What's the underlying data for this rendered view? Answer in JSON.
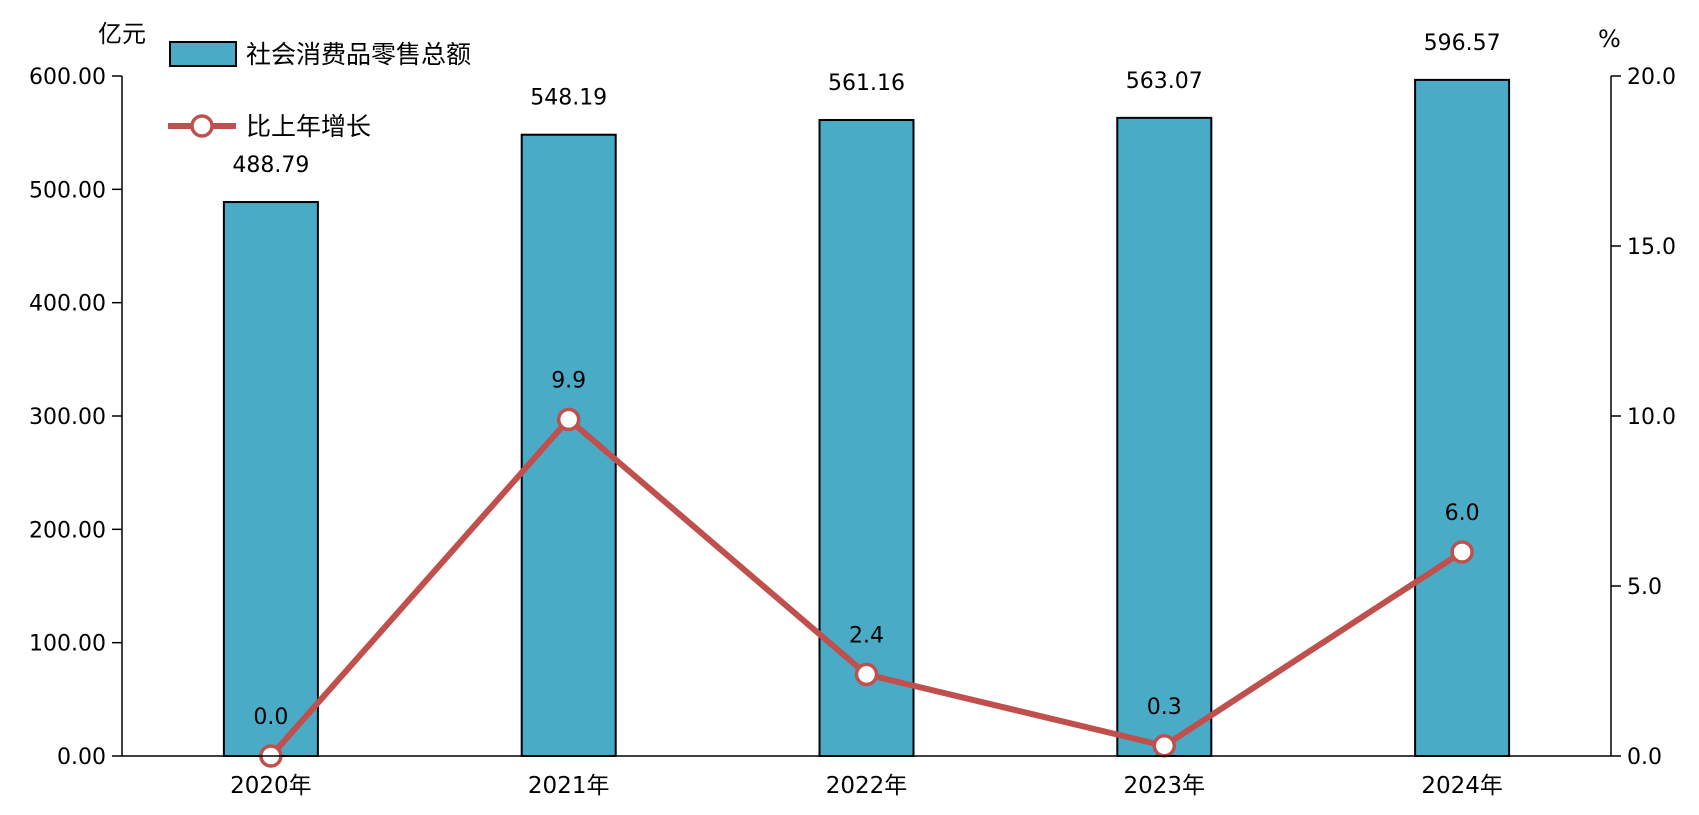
{
  "chart_data": {
    "type": "bar",
    "categories": [
      "2020年",
      "2021年",
      "2022年",
      "2023年",
      "2024年"
    ],
    "series": [
      {
        "name": "社会消费品零售总额",
        "type": "bar",
        "axis": "left",
        "values": [
          488.79,
          548.19,
          561.16,
          563.07,
          596.57
        ],
        "labels": [
          "488.79",
          "548.19",
          "561.16",
          "563.07",
          "596.57"
        ],
        "color": "#4aabc6"
      },
      {
        "name": "比上年增长",
        "type": "line",
        "axis": "right",
        "values": [
          0.0,
          9.9,
          2.4,
          0.3,
          6.0
        ],
        "labels": [
          "0.0",
          "9.9",
          "2.4",
          "0.3",
          "6.0"
        ],
        "color": "#c0504d"
      }
    ],
    "y_left": {
      "unit": "亿元",
      "range": [
        0,
        600
      ],
      "ticks": [
        "0.00",
        "100.00",
        "200.00",
        "300.00",
        "400.00",
        "500.00",
        "600.00"
      ]
    },
    "y_right": {
      "unit": "%",
      "range": [
        0,
        20
      ],
      "ticks": [
        "0.0",
        "5.0",
        "10.0",
        "15.0",
        "20.0"
      ]
    },
    "grid": false,
    "legend_position": "top-left"
  }
}
